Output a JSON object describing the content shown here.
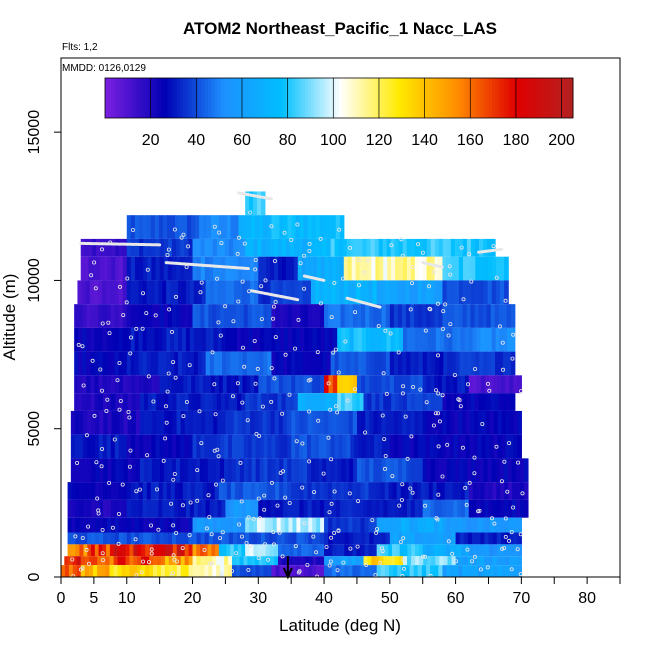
{
  "chart_data": {
    "type": "heatmap",
    "title": "ATOM2 Northeast_Pacific_1 Nacc_LAS",
    "subtitle_flights": "Flts: 1,2",
    "subtitle_dates": "MMDD: 0126,0129",
    "xlabel": "Latitude (deg N)",
    "ylabel": "Altitude (m)",
    "xlim": [
      0,
      85
    ],
    "ylim": [
      0,
      17500
    ],
    "x_ticks": [
      {
        "value": 0,
        "label": "0"
      },
      {
        "value": 5,
        "label": "5"
      },
      {
        "value": 10,
        "label": "10"
      },
      {
        "value": 20,
        "label": "20"
      },
      {
        "value": 30,
        "label": "30"
      },
      {
        "value": 40,
        "label": "40"
      },
      {
        "value": 50,
        "label": "50"
      },
      {
        "value": 60,
        "label": "60"
      },
      {
        "value": 70,
        "label": "70"
      },
      {
        "value": 80,
        "label": "80"
      }
    ],
    "x_minor_ticks": [
      15,
      25,
      35,
      45,
      55,
      65,
      75,
      85
    ],
    "y_ticks": [
      {
        "value": 0,
        "label": "0"
      },
      {
        "value": 5000,
        "label": "5000"
      },
      {
        "value": 10000,
        "label": "10000"
      },
      {
        "value": 15000,
        "label": "15000"
      }
    ],
    "colorbar": {
      "range": [
        0,
        205
      ],
      "ticks": [
        {
          "value": 20,
          "label": "20"
        },
        {
          "value": 40,
          "label": "40"
        },
        {
          "value": 60,
          "label": "60"
        },
        {
          "value": 80,
          "label": "80"
        },
        {
          "value": 100,
          "label": "100"
        },
        {
          "value": 120,
          "label": "120"
        },
        {
          "value": 140,
          "label": "140"
        },
        {
          "value": 160,
          "label": "160"
        },
        {
          "value": 180,
          "label": "180"
        },
        {
          "value": 200,
          "label": "200"
        }
      ],
      "colors": [
        "#7a1fe0",
        "#0000b4",
        "#1e90ff",
        "#00bfff",
        "#ffffff",
        "#ffea00",
        "#ff8c00",
        "#e00000",
        "#b22222"
      ]
    },
    "arrow_marker_lat": 34.5,
    "layers": [
      {
        "alt": [
          12200,
          13000
        ],
        "segs": [
          [
            28.0,
            31.0,
            80
          ]
        ]
      },
      {
        "alt": [
          11400,
          12200
        ],
        "segs": [
          [
            10.0,
            21.0,
            40
          ],
          [
            21.0,
            27.0,
            50
          ],
          [
            27.0,
            32.0,
            70
          ],
          [
            32.0,
            43.0,
            75
          ]
        ]
      },
      {
        "alt": [
          10800,
          11400
        ],
        "segs": [
          [
            3.0,
            10.0,
            15
          ],
          [
            10.0,
            20.0,
            35
          ],
          [
            20.0,
            28.0,
            50
          ],
          [
            28.0,
            41.0,
            70
          ],
          [
            41.0,
            55.0,
            80
          ],
          [
            55.0,
            66.0,
            80
          ]
        ]
      },
      {
        "alt": [
          10000,
          10800
        ],
        "segs": [
          [
            3.0,
            10.0,
            10
          ],
          [
            10.0,
            20.0,
            30
          ],
          [
            20.0,
            30.0,
            50
          ],
          [
            30.0,
            36.0,
            30
          ],
          [
            36.0,
            43.0,
            65
          ],
          [
            43.0,
            58.0,
            110
          ],
          [
            58.0,
            68.0,
            80
          ]
        ]
      },
      {
        "alt": [
          9200,
          10000
        ],
        "segs": [
          [
            2.5,
            10.0,
            10
          ],
          [
            10.0,
            22.0,
            30
          ],
          [
            22.0,
            30.0,
            45
          ],
          [
            30.0,
            38.0,
            35
          ],
          [
            38.0,
            48.0,
            70
          ],
          [
            48.0,
            58.0,
            60
          ],
          [
            58.0,
            68.0,
            40
          ]
        ]
      },
      {
        "alt": [
          8400,
          9200
        ],
        "segs": [
          [
            2.0,
            10.0,
            15
          ],
          [
            10.0,
            20.0,
            25
          ],
          [
            20.0,
            32.0,
            40
          ],
          [
            32.0,
            40.0,
            20
          ],
          [
            40.0,
            50.0,
            45
          ],
          [
            50.0,
            58.0,
            35
          ],
          [
            58.0,
            69.0,
            40
          ]
        ]
      },
      {
        "alt": [
          7600,
          8400
        ],
        "segs": [
          [
            2.0,
            10.0,
            25
          ],
          [
            10.0,
            25.0,
            30
          ],
          [
            25.0,
            32.0,
            25
          ],
          [
            32.0,
            42.0,
            25
          ],
          [
            42.0,
            52.0,
            75
          ],
          [
            52.0,
            62.0,
            45
          ],
          [
            62.0,
            69.0,
            50
          ]
        ]
      },
      {
        "alt": [
          6800,
          7600
        ],
        "segs": [
          [
            2.0,
            10.0,
            25
          ],
          [
            10.0,
            22.0,
            30
          ],
          [
            22.0,
            32.0,
            45
          ],
          [
            32.0,
            41.0,
            25
          ],
          [
            41.0,
            50.0,
            40
          ],
          [
            50.0,
            60.0,
            30
          ],
          [
            60.0,
            69.0,
            35
          ]
        ]
      },
      {
        "alt": [
          6200,
          6800
        ],
        "segs": [
          [
            2.0,
            15.0,
            20
          ],
          [
            15.0,
            30.0,
            30
          ],
          [
            30.0,
            40.0,
            40
          ],
          [
            40.0,
            42.0,
            170
          ],
          [
            42.0,
            45.0,
            130
          ],
          [
            45.0,
            55.0,
            40
          ],
          [
            55.0,
            62.0,
            30
          ],
          [
            62.0,
            70.0,
            10
          ]
        ]
      },
      {
        "alt": [
          5600,
          6200
        ],
        "segs": [
          [
            2.0,
            12.0,
            20
          ],
          [
            12.0,
            28.0,
            30
          ],
          [
            28.0,
            36.0,
            35
          ],
          [
            36.0,
            42.0,
            70
          ],
          [
            42.0,
            46.0,
            85
          ],
          [
            46.0,
            58.0,
            35
          ],
          [
            58.0,
            69.0,
            25
          ]
        ]
      },
      {
        "alt": [
          4800,
          5600
        ],
        "segs": [
          [
            1.5,
            12.0,
            20
          ],
          [
            12.0,
            25.0,
            30
          ],
          [
            25.0,
            35.0,
            35
          ],
          [
            35.0,
            45.0,
            40
          ],
          [
            45.0,
            55.0,
            30
          ],
          [
            55.0,
            70.0,
            25
          ]
        ]
      },
      {
        "alt": [
          4000,
          4800
        ],
        "segs": [
          [
            1.5,
            10.0,
            30
          ],
          [
            10.0,
            20.0,
            25
          ],
          [
            20.0,
            35.0,
            35
          ],
          [
            35.0,
            44.0,
            40
          ],
          [
            44.0,
            50.0,
            30
          ],
          [
            50.0,
            70.0,
            25
          ]
        ]
      },
      {
        "alt": [
          3200,
          4000
        ],
        "segs": [
          [
            1.5,
            12.0,
            25
          ],
          [
            12.0,
            26.0,
            30
          ],
          [
            26.0,
            38.0,
            35
          ],
          [
            38.0,
            45.0,
            30
          ],
          [
            45.0,
            55.0,
            40
          ],
          [
            55.0,
            71.0,
            25
          ]
        ]
      },
      {
        "alt": [
          2600,
          3200
        ],
        "segs": [
          [
            1.0,
            10.0,
            25
          ],
          [
            10.0,
            24.0,
            30
          ],
          [
            24.0,
            35.0,
            40
          ],
          [
            35.0,
            48.0,
            35
          ],
          [
            48.0,
            62.0,
            30
          ],
          [
            62.0,
            71.0,
            20
          ]
        ]
      },
      {
        "alt": [
          2000,
          2600
        ],
        "segs": [
          [
            1.0,
            10.0,
            20
          ],
          [
            10.0,
            25.0,
            30
          ],
          [
            25.0,
            30.0,
            55
          ],
          [
            30.0,
            40.0,
            30
          ],
          [
            40.0,
            55.0,
            30
          ],
          [
            55.0,
            62.0,
            45
          ],
          [
            62.0,
            71.0,
            25
          ]
        ]
      },
      {
        "alt": [
          1500,
          2000
        ],
        "segs": [
          [
            1.0,
            10.0,
            25
          ],
          [
            10.0,
            20.0,
            25
          ],
          [
            20.0,
            28.0,
            55
          ],
          [
            28.0,
            40.0,
            95
          ],
          [
            40.0,
            48.0,
            35
          ],
          [
            48.0,
            58.0,
            65
          ],
          [
            58.0,
            70.0,
            55
          ]
        ]
      },
      {
        "alt": [
          1100,
          1500
        ],
        "segs": [
          [
            1.0,
            10.0,
            40
          ],
          [
            10.0,
            20.0,
            40
          ],
          [
            20.0,
            28.0,
            40
          ],
          [
            28.0,
            40.0,
            40
          ],
          [
            40.0,
            50.0,
            30
          ],
          [
            50.0,
            60.0,
            60
          ],
          [
            60.0,
            70.0,
            30
          ]
        ]
      },
      {
        "alt": [
          700,
          1100
        ],
        "segs": [
          [
            1.0,
            4.0,
            160
          ],
          [
            4.0,
            8.0,
            170
          ],
          [
            8.0,
            14.0,
            180
          ],
          [
            14.0,
            20.0,
            180
          ],
          [
            20.0,
            24.0,
            160
          ],
          [
            24.0,
            28.0,
            80
          ],
          [
            28.0,
            33.0,
            95
          ],
          [
            33.0,
            40.0,
            45
          ],
          [
            40.0,
            48.0,
            30
          ],
          [
            48.0,
            55.0,
            80
          ],
          [
            55.0,
            62.0,
            65
          ],
          [
            62.0,
            70.0,
            55
          ]
        ]
      },
      {
        "alt": [
          400,
          700
        ],
        "segs": [
          [
            0.5,
            3.0,
            180
          ],
          [
            3.0,
            8.0,
            160
          ],
          [
            8.0,
            14.0,
            170
          ],
          [
            14.0,
            20.0,
            150
          ],
          [
            20.0,
            26.0,
            110
          ],
          [
            26.0,
            33.0,
            80
          ],
          [
            33.0,
            40.0,
            20
          ],
          [
            40.0,
            46.0,
            60
          ],
          [
            46.0,
            52.0,
            130
          ],
          [
            52.0,
            60.0,
            90
          ],
          [
            60.0,
            70.0,
            60
          ]
        ]
      },
      {
        "alt": [
          0,
          400
        ],
        "segs": [
          [
            0.0,
            3.0,
            165
          ],
          [
            3.0,
            8.0,
            140
          ],
          [
            8.0,
            14.0,
            130
          ],
          [
            14.0,
            20.0,
            120
          ],
          [
            20.0,
            26.0,
            110
          ],
          [
            26.0,
            32.0,
            40
          ],
          [
            32.0,
            40.0,
            10
          ],
          [
            40.0,
            48.0,
            45
          ],
          [
            48.0,
            58.0,
            80
          ],
          [
            58.0,
            70.0,
            60
          ]
        ]
      }
    ],
    "track_lines": [
      {
        "lats": [
          3.0,
          15.0
        ],
        "alts": [
          11250,
          11200
        ]
      },
      {
        "lats": [
          16.0,
          28.5
        ],
        "alts": [
          10600,
          10400
        ]
      },
      {
        "lats": [
          27.0,
          32.0
        ],
        "alts": [
          12950,
          12750
        ]
      },
      {
        "lats": [
          29.0,
          36.0
        ],
        "alts": [
          9650,
          9350
        ]
      },
      {
        "lats": [
          37.0,
          40.0
        ],
        "alts": [
          10150,
          10000
        ]
      },
      {
        "lats": [
          43.5,
          48.5
        ],
        "alts": [
          9400,
          9100
        ]
      },
      {
        "lats": [
          55.0,
          58.0
        ],
        "alts": [
          10600,
          10450
        ]
      },
      {
        "lats": [
          63.5,
          67.0
        ],
        "alts": [
          10950,
          11050
        ]
      }
    ]
  }
}
